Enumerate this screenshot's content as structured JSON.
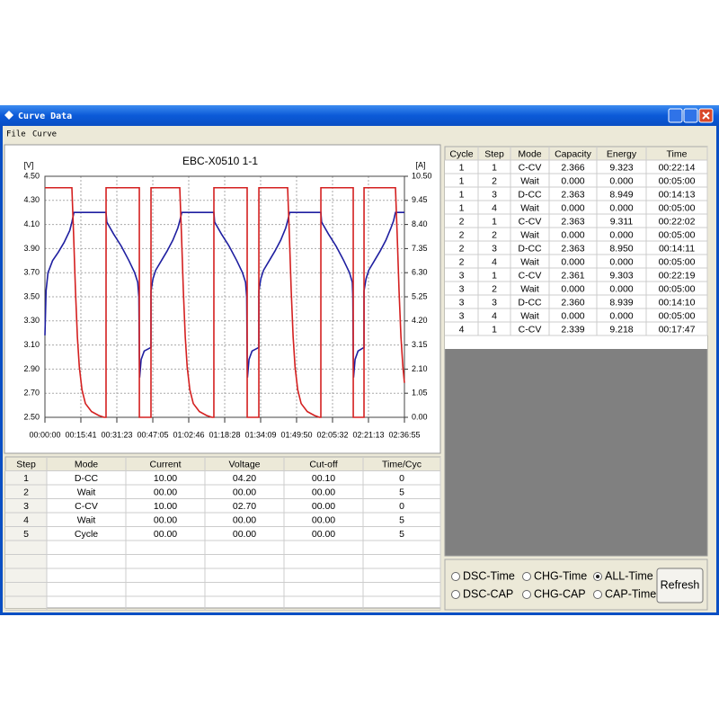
{
  "window": {
    "title": "Curve Data",
    "menu": [
      "File",
      "Curve"
    ]
  },
  "chart_data": {
    "type": "line",
    "title": "EBC-X0510 1-1",
    "y_label": "[V]",
    "y2_label": "[A]",
    "grid": true,
    "xlim": [
      0,
      9415
    ],
    "xticks": [
      {
        "value": 0,
        "label": "00:00:00"
      },
      {
        "value": 941,
        "label": "00:15:41"
      },
      {
        "value": 1883,
        "label": "00:31:23"
      },
      {
        "value": 2825,
        "label": "00:47:05"
      },
      {
        "value": 3766,
        "label": "01:02:46"
      },
      {
        "value": 4708,
        "label": "01:18:28"
      },
      {
        "value": 5649,
        "label": "01:34:09"
      },
      {
        "value": 6590,
        "label": "01:49:50"
      },
      {
        "value": 7532,
        "label": "02:05:32"
      },
      {
        "value": 8473,
        "label": "02:21:13"
      },
      {
        "value": 9415,
        "label": "02:36:55"
      }
    ],
    "ylim": [
      2.5,
      4.5
    ],
    "yticks": [
      {
        "value": 4.5,
        "label": "4.50"
      },
      {
        "value": 4.3,
        "label": "4.30"
      },
      {
        "value": 4.1,
        "label": "4.10"
      },
      {
        "value": 3.9,
        "label": "3.90"
      },
      {
        "value": 3.7,
        "label": "3.70"
      },
      {
        "value": 3.5,
        "label": "3.50"
      },
      {
        "value": 3.3,
        "label": "3.30"
      },
      {
        "value": 3.1,
        "label": "3.10"
      },
      {
        "value": 2.9,
        "label": "2.90"
      },
      {
        "value": 2.7,
        "label": "2.70"
      },
      {
        "value": 2.5,
        "label": "2.50"
      }
    ],
    "y2lim": [
      0,
      10.5
    ],
    "y2ticks": [
      {
        "value": 10.5,
        "label": "10.50"
      },
      9.45,
      {
        "value": 8.4,
        "label": "8.40"
      },
      7.35,
      {
        "value": 6.3,
        "label": "6.30"
      },
      5.25,
      {
        "value": 4.2,
        "label": "4.20"
      },
      3.15,
      {
        "value": 2.1,
        "label": "2.10"
      },
      1.05,
      {
        "value": 0,
        "label": "0.00"
      }
    ],
    "series": [
      {
        "color": "#1f1fa0",
        "axis": "y",
        "x": [
          0,
          30,
          80,
          200,
          350,
          500,
          650,
          706,
          760,
          1600,
          1620,
          1800,
          2000,
          2200,
          2350,
          2430,
          2460,
          2472,
          2480,
          2520,
          2600,
          2777,
          2778,
          2830,
          2900,
          3050,
          3200,
          3350,
          3480,
          3531,
          3585,
          4424,
          4444,
          4624,
          4824,
          5024,
          5174,
          5254,
          5284,
          5296,
          5304,
          5344,
          5424,
          5602,
          5603,
          5655,
          5725,
          5875,
          6025,
          6175,
          6305,
          6356,
          6410,
          7226,
          7246,
          7426,
          7626,
          7826,
          7976,
          8050,
          8064,
          8074,
          8082,
          8122,
          8200,
          8356,
          8357,
          8410,
          8480,
          8630,
          8780,
          8930,
          9060,
          9130,
          9180,
          9415
        ],
        "values": [
          3.18,
          3.55,
          3.7,
          3.8,
          3.87,
          3.95,
          4.05,
          4.12,
          4.2,
          4.2,
          4.12,
          4.02,
          3.92,
          3.8,
          3.7,
          3.62,
          3.5,
          3.0,
          2.83,
          2.98,
          3.05,
          3.08,
          3.55,
          3.65,
          3.72,
          3.8,
          3.88,
          3.97,
          4.07,
          4.13,
          4.2,
          4.2,
          4.12,
          4.02,
          3.92,
          3.8,
          3.7,
          3.62,
          3.5,
          3.0,
          2.83,
          2.98,
          3.05,
          3.08,
          3.55,
          3.65,
          3.72,
          3.8,
          3.88,
          3.97,
          4.07,
          4.13,
          4.2,
          4.2,
          4.12,
          4.02,
          3.92,
          3.8,
          3.7,
          3.62,
          3.5,
          3.0,
          2.83,
          2.98,
          3.05,
          3.08,
          3.55,
          3.65,
          3.72,
          3.8,
          3.88,
          3.97,
          4.07,
          4.13,
          4.2,
          4.2
        ]
      },
      {
        "color": "#d42020",
        "axis": "y2",
        "x": [
          0,
          706,
          750,
          800,
          850,
          900,
          970,
          1060,
          1220,
          1410,
          1550,
          1600,
          1601,
          2472,
          2473,
          2777,
          2778,
          3531,
          3575,
          3625,
          3675,
          3725,
          3795,
          3885,
          4045,
          4235,
          4375,
          4424,
          4425,
          5296,
          5297,
          5602,
          5603,
          6356,
          6400,
          6450,
          6500,
          6550,
          6620,
          6710,
          6870,
          7060,
          7190,
          7226,
          7227,
          8074,
          8075,
          8356,
          8357,
          9180,
          9224,
          9274,
          9324,
          9374,
          9415
        ],
        "values": [
          10,
          10,
          8,
          5.5,
          3.5,
          2.2,
          1.2,
          0.6,
          0.25,
          0.08,
          0,
          0,
          10,
          10,
          0,
          0,
          10,
          10,
          8,
          5.5,
          3.5,
          2.2,
          1.2,
          0.6,
          0.25,
          0.08,
          0,
          0,
          10,
          10,
          0,
          0,
          10,
          10,
          8,
          5.5,
          3.5,
          2.2,
          1.2,
          0.6,
          0.25,
          0.08,
          0,
          0,
          10,
          10,
          0,
          0,
          10,
          10,
          8,
          5.5,
          3.5,
          2.2,
          1.5
        ]
      }
    ]
  },
  "results_table": {
    "columns": [
      "Cycle",
      "Step",
      "Mode",
      "Capacity",
      "Energy",
      "Time"
    ],
    "rows": [
      [
        "1",
        "1",
        "C-CV",
        "2.366",
        "9.323",
        "00:22:14"
      ],
      [
        "1",
        "2",
        "Wait",
        "0.000",
        "0.000",
        "00:05:00"
      ],
      [
        "1",
        "3",
        "D-CC",
        "2.363",
        "8.949",
        "00:14:13"
      ],
      [
        "1",
        "4",
        "Wait",
        "0.000",
        "0.000",
        "00:05:00"
      ],
      [
        "2",
        "1",
        "C-CV",
        "2.363",
        "9.311",
        "00:22:02"
      ],
      [
        "2",
        "2",
        "Wait",
        "0.000",
        "0.000",
        "00:05:00"
      ],
      [
        "2",
        "3",
        "D-CC",
        "2.363",
        "8.950",
        "00:14:11"
      ],
      [
        "2",
        "4",
        "Wait",
        "0.000",
        "0.000",
        "00:05:00"
      ],
      [
        "3",
        "1",
        "C-CV",
        "2.361",
        "9.303",
        "00:22:19"
      ],
      [
        "3",
        "2",
        "Wait",
        "0.000",
        "0.000",
        "00:05:00"
      ],
      [
        "3",
        "3",
        "D-CC",
        "2.360",
        "8.939",
        "00:14:10"
      ],
      [
        "3",
        "4",
        "Wait",
        "0.000",
        "0.000",
        "00:05:00"
      ],
      [
        "4",
        "1",
        "C-CV",
        "2.339",
        "9.218",
        "00:17:47"
      ]
    ]
  },
  "steps_table": {
    "columns": [
      "Step",
      "Mode",
      "Current",
      "Voltage",
      "Cut-off",
      "Time/Cyc"
    ],
    "rows": [
      [
        "1",
        "D-CC",
        "10.00",
        "04.20",
        "00.10",
        "0"
      ],
      [
        "2",
        "Wait",
        "00.00",
        "00.00",
        "00.00",
        "5"
      ],
      [
        "3",
        "C-CV",
        "10.00",
        "02.70",
        "00.00",
        "0"
      ],
      [
        "4",
        "Wait",
        "00.00",
        "00.00",
        "00.00",
        "5"
      ],
      [
        "5",
        "Cycle",
        "00.00",
        "00.00",
        "00.00",
        "5"
      ]
    ]
  },
  "options": [
    {
      "label": "DSC-Time",
      "checked": false
    },
    {
      "label": "CHG-Time",
      "checked": false
    },
    {
      "label": "ALL-Time",
      "checked": true
    },
    {
      "label": "DSC-CAP",
      "checked": false
    },
    {
      "label": "CHG-CAP",
      "checked": false
    },
    {
      "label": "CAP-Time",
      "checked": false
    }
  ],
  "button": "Refresh"
}
